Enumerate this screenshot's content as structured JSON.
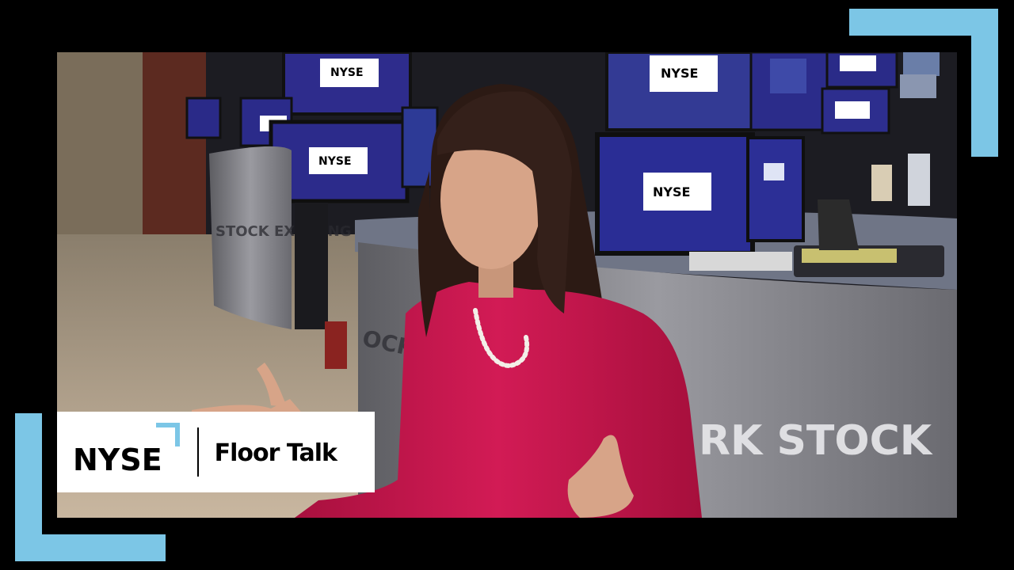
{
  "colors": {
    "frame_accent": "#7cc6e6",
    "background": "#000000",
    "lower_third_bg": "#ffffff",
    "jacket": "#c8174e"
  },
  "lower_third": {
    "brand": "NYSE",
    "show_title": "Floor Talk"
  },
  "scene": {
    "monitor_brand": "NYSE",
    "desk_wall_text": "RK STOCK",
    "left_desk_text": "STOCK EXCHANG",
    "center_desk_text": "OCK EXCH"
  }
}
